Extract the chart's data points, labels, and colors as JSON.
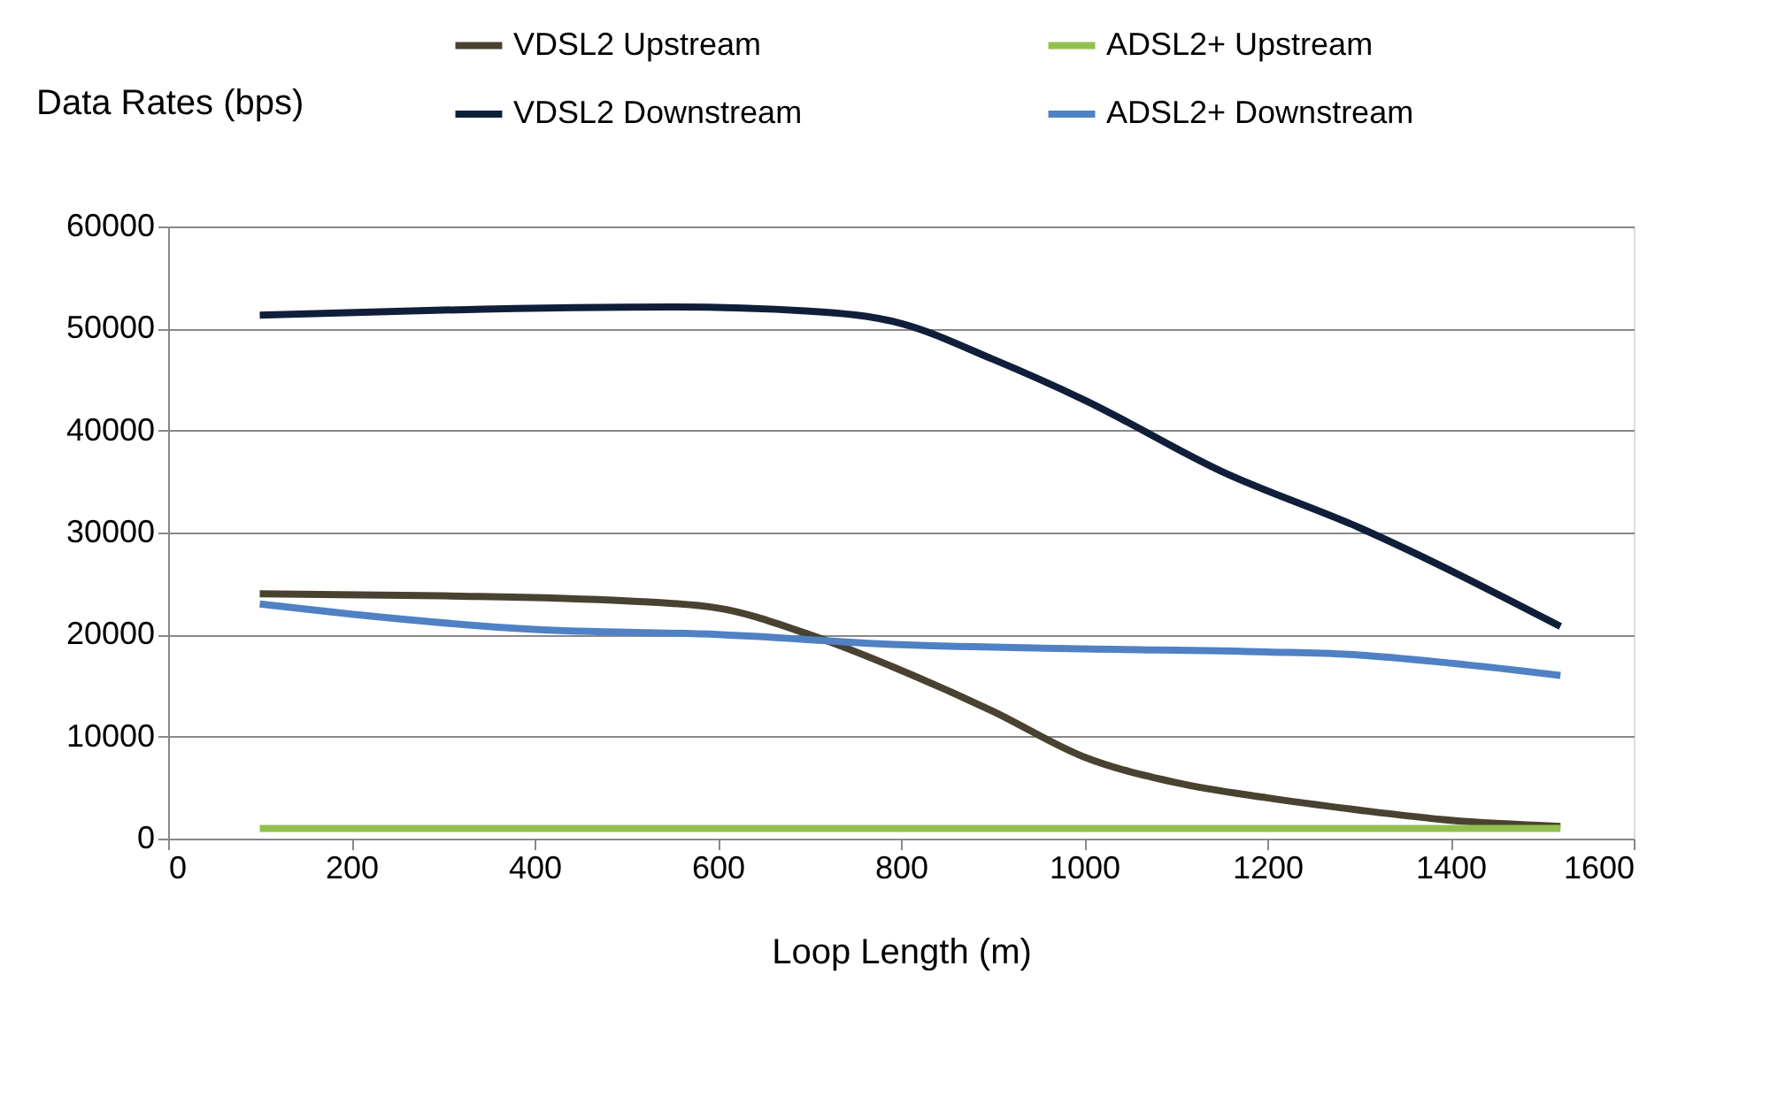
{
  "chart_data": {
    "type": "line",
    "xlabel": "Loop Length (m)",
    "ylabel": "Data Rates (bps)",
    "xlim": [
      0,
      1600
    ],
    "xticks": [
      0,
      200,
      400,
      600,
      800,
      1000,
      1200,
      1400,
      1600
    ],
    "ylim": [
      0,
      60000
    ],
    "yticks": [
      0,
      10000,
      20000,
      30000,
      40000,
      50000,
      60000
    ],
    "grid": "y",
    "legend": "top",
    "marker": "none",
    "line_style": "solid",
    "series": [
      {
        "name": "VDSL2 Upstream",
        "color": "#4a4230",
        "x": [
          100,
          300,
          500,
          600,
          700,
          800,
          900,
          1000,
          1100,
          1200,
          1300,
          1400,
          1520
        ],
        "values": [
          24000,
          23800,
          23300,
          22600,
          20000,
          16500,
          12500,
          8000,
          5500,
          4000,
          2800,
          1800,
          1200
        ]
      },
      {
        "name": "VDSL2 Downstream",
        "color": "#0f1f3a",
        "x": [
          100,
          300,
          550,
          700,
          800,
          900,
          1000,
          1150,
          1300,
          1520
        ],
        "values": [
          51300,
          51800,
          52100,
          51700,
          50500,
          47000,
          43000,
          36000,
          30500,
          20800
        ]
      },
      {
        "name": "ADSL2+ Upstream",
        "color": "#92c050",
        "x": [
          100,
          1520
        ],
        "values": [
          1000,
          1000
        ]
      },
      {
        "name": "ADSL2+ Downstream",
        "color": "#4f81c4",
        "x": [
          100,
          200,
          400,
          600,
          800,
          1000,
          1200,
          1300,
          1400,
          1520
        ],
        "values": [
          23000,
          22000,
          20500,
          20000,
          19000,
          18600,
          18300,
          18000,
          17200,
          16000
        ]
      }
    ]
  }
}
